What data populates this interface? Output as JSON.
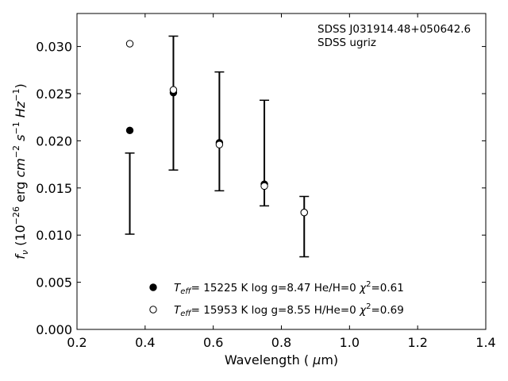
{
  "chart_data": {
    "type": "scatter",
    "xlabel": "Wavelength (μm)",
    "ylabel": "f_ν (10^−26 erg cm^−2 s^−1 Hz^−1)",
    "xlim": [
      0.2,
      1.4
    ],
    "ylim": [
      0.0,
      0.0335
    ],
    "x_ticks": [
      0.2,
      0.4,
      0.6,
      0.8,
      1.0,
      1.2,
      1.4
    ],
    "x_tick_labels": [
      "0.2",
      "0.4",
      "0.6",
      "0.8",
      "1.0",
      "1.2",
      "1.4"
    ],
    "y_ticks": [
      0.0,
      0.005,
      0.01,
      0.015,
      0.02,
      0.025,
      0.03
    ],
    "y_tick_labels": [
      "0.000",
      "0.005",
      "0.010",
      "0.015",
      "0.020",
      "0.025",
      "0.030"
    ],
    "grid": false,
    "annotation": [
      "SDSS J031914.48+050642.6",
      "SDSS ugriz"
    ],
    "observed": {
      "x": [
        0.355,
        0.483,
        0.618,
        0.75,
        0.867
      ],
      "y": [
        0.0144,
        0.024,
        0.021,
        0.0187,
        0.0109
      ],
      "yerr": [
        0.0043,
        0.0071,
        0.0063,
        0.0056,
        0.0032
      ]
    },
    "series": [
      {
        "name": "T_eff= 15225 K  log g=8.47  He/H=0  χ²=0.61",
        "marker": "filled-circle",
        "x": [
          0.355,
          0.483,
          0.618,
          0.75,
          0.867
        ],
        "y": [
          0.0211,
          0.0251,
          0.0198,
          0.0154,
          0.0124
        ]
      },
      {
        "name": "T_eff= 15953 K  log g=8.55  H/He=0  χ²=0.69",
        "marker": "open-circle",
        "x": [
          0.355,
          0.483,
          0.618,
          0.75,
          0.867
        ],
        "y": [
          0.0303,
          0.0254,
          0.0196,
          0.0152,
          0.0124
        ]
      }
    ],
    "legend": {
      "placement": "lower-center",
      "entries": [
        {
          "marker": "filled-circle",
          "teff_value": "= 15225 K  log g=8.47  He/H=0  ",
          "chi_value": "=0.61"
        },
        {
          "marker": "open-circle",
          "teff_value": "= 15953 K  log g=8.55  H/He=0  ",
          "chi_value": "=0.69"
        }
      ]
    },
    "colors": {
      "axes": "#000000",
      "marker": "#000000",
      "background": "#ffffff"
    }
  }
}
